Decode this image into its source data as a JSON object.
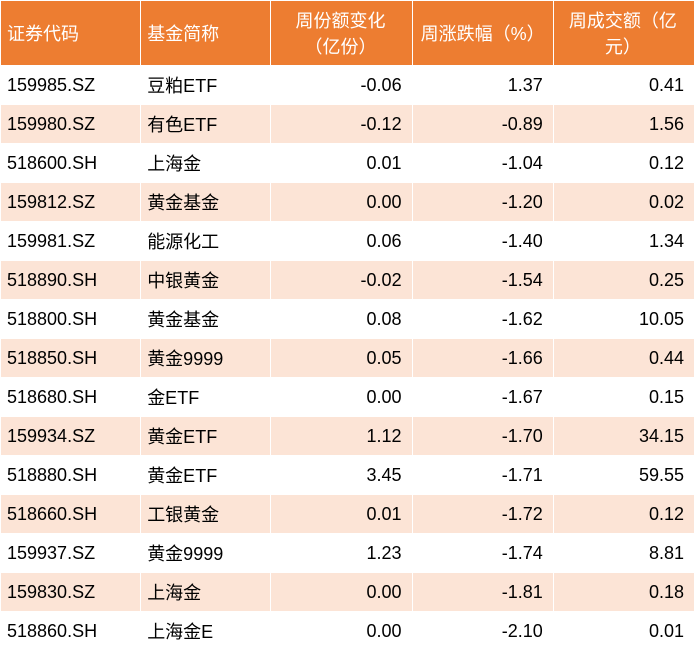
{
  "table": {
    "columns": [
      {
        "label": "证券代码",
        "class": "col-code",
        "key": "code"
      },
      {
        "label": "基金简称",
        "class": "col-name",
        "key": "name"
      },
      {
        "label": "周份额变化（亿份）",
        "class": "col-num",
        "key": "share_change"
      },
      {
        "label": "周涨跌幅（%）",
        "class": "col-num",
        "key": "pct_change"
      },
      {
        "label": "周成交额（亿元）",
        "class": "col-num",
        "key": "turnover"
      }
    ],
    "rows": [
      {
        "code": "159985.SZ",
        "name": "豆粕ETF",
        "share_change": "-0.06",
        "pct_change": "1.37",
        "turnover": "0.41"
      },
      {
        "code": "159980.SZ",
        "name": "有色ETF",
        "share_change": "-0.12",
        "pct_change": "-0.89",
        "turnover": "1.56"
      },
      {
        "code": "518600.SH",
        "name": "上海金",
        "share_change": "0.01",
        "pct_change": "-1.04",
        "turnover": "0.12"
      },
      {
        "code": "159812.SZ",
        "name": "黄金基金",
        "share_change": "0.00",
        "pct_change": "-1.20",
        "turnover": "0.02"
      },
      {
        "code": "159981.SZ",
        "name": "能源化工",
        "share_change": "0.06",
        "pct_change": "-1.40",
        "turnover": "1.34"
      },
      {
        "code": "518890.SH",
        "name": "中银黄金",
        "share_change": "-0.02",
        "pct_change": "-1.54",
        "turnover": "0.25"
      },
      {
        "code": "518800.SH",
        "name": "黄金基金",
        "share_change": "0.08",
        "pct_change": "-1.62",
        "turnover": "10.05"
      },
      {
        "code": "518850.SH",
        "name": "黄金9999",
        "share_change": "0.05",
        "pct_change": "-1.66",
        "turnover": "0.44"
      },
      {
        "code": "518680.SH",
        "name": "金ETF",
        "share_change": "0.00",
        "pct_change": "-1.67",
        "turnover": "0.15"
      },
      {
        "code": "159934.SZ",
        "name": "黄金ETF",
        "share_change": "1.12",
        "pct_change": "-1.70",
        "turnover": "34.15"
      },
      {
        "code": "518880.SH",
        "name": "黄金ETF",
        "share_change": "3.45",
        "pct_change": "-1.71",
        "turnover": "59.55"
      },
      {
        "code": "518660.SH",
        "name": "工银黄金",
        "share_change": "0.01",
        "pct_change": "-1.72",
        "turnover": "0.12"
      },
      {
        "code": "159937.SZ",
        "name": "黄金9999",
        "share_change": "1.23",
        "pct_change": "-1.74",
        "turnover": "8.81"
      },
      {
        "code": "159830.SZ",
        "name": "上海金",
        "share_change": "0.00",
        "pct_change": "-1.81",
        "turnover": "0.18"
      },
      {
        "code": "518860.SH",
        "name": "上海金E",
        "share_change": "0.00",
        "pct_change": "-2.10",
        "turnover": "0.01"
      }
    ],
    "header_bg": "#ed7d31",
    "row_odd_bg": "#ffffff",
    "row_even_bg": "#fce4d6",
    "font_size": 18
  }
}
